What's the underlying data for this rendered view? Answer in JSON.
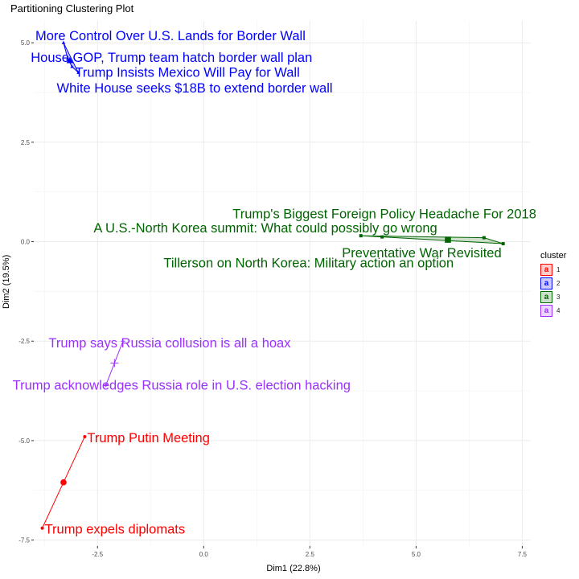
{
  "title": "Partitioning Clustering Plot",
  "xlabel": "Dim1 (22.8%)",
  "ylabel": "Dim2 (19.5%)",
  "legend": {
    "title": "cluster",
    "items": [
      {
        "label": "1",
        "color": "#ff0000",
        "glyph": "a"
      },
      {
        "label": "2",
        "color": "#0000ff",
        "glyph": "a"
      },
      {
        "label": "3",
        "color": "#006400",
        "glyph": "a"
      },
      {
        "label": "4",
        "color": "#9b30ff",
        "glyph": "a"
      }
    ]
  },
  "chart_data": {
    "type": "scatter",
    "title": "Partitioning Clustering Plot",
    "xlabel": "Dim1 (22.8%)",
    "ylabel": "Dim2 (19.5%)",
    "xlim": [
      -4.0,
      7.7
    ],
    "ylim": [
      -7.65,
      5.55
    ],
    "xticks": [
      -2.5,
      0.0,
      2.5,
      5.0,
      7.5
    ],
    "yticks": [
      -7.5,
      -5.0,
      -2.5,
      0.0,
      2.5,
      5.0
    ],
    "xtick_labels": [
      "-2.5",
      "0.0",
      "2.5",
      "5.0",
      "7.5"
    ],
    "ytick_labels": [
      "-7.5",
      "-5.0",
      "-2.5",
      "0.0",
      "2.5",
      "5.0"
    ],
    "grid": true,
    "legend_position": "right",
    "series": [
      {
        "name": "1",
        "color": "#ff0000",
        "marker": "circle",
        "points": [
          {
            "x": -2.8,
            "y": -4.9,
            "label": "Trump Putin Meeting"
          },
          {
            "x": -3.8,
            "y": -7.2,
            "label": "Trump expels diplomats"
          }
        ],
        "center": {
          "x": -3.3,
          "y": -6.05
        }
      },
      {
        "name": "2",
        "color": "#0000ff",
        "marker": "triangle",
        "points": [
          {
            "x": -3.3,
            "y": 5.0,
            "label": "More Control Over U.S. Lands for Border Wall"
          },
          {
            "x": -3.2,
            "y": 4.6,
            "label": "House GOP, Trump team hatch border wall plan"
          },
          {
            "x": -2.95,
            "y": 4.25,
            "label": "Trump Insists Mexico Will Pay for Wall"
          },
          {
            "x": -3.1,
            "y": 4.4,
            "label": "White House seeks $18B to extend border wall"
          }
        ],
        "center": {
          "x": -3.15,
          "y": 4.55
        }
      },
      {
        "name": "3",
        "color": "#006400",
        "marker": "square",
        "points": [
          {
            "x": 6.6,
            "y": 0.1,
            "label": "Trump's Biggest Foreign Policy Headache For 2018"
          },
          {
            "x": 3.7,
            "y": 0.15,
            "label": "A U.S.-North Korea summit: What could possibly go wrong"
          },
          {
            "x": 7.05,
            "y": -0.05,
            "label": "Preventative War Revisited"
          },
          {
            "x": 4.2,
            "y": 0.12,
            "label": "Tillerson on North Korea: Military action an option"
          }
        ],
        "center": {
          "x": 5.75,
          "y": 0.05
        }
      },
      {
        "name": "4",
        "color": "#9b30ff",
        "marker": "cross",
        "points": [
          {
            "x": -1.9,
            "y": -2.5,
            "label": "Trump says Russia collusion is all a hoax"
          },
          {
            "x": -2.3,
            "y": -3.6,
            "label": "Trump acknowledges Russia role in U.S. election hacking"
          }
        ],
        "center": {
          "x": -2.1,
          "y": -3.05
        }
      }
    ]
  }
}
